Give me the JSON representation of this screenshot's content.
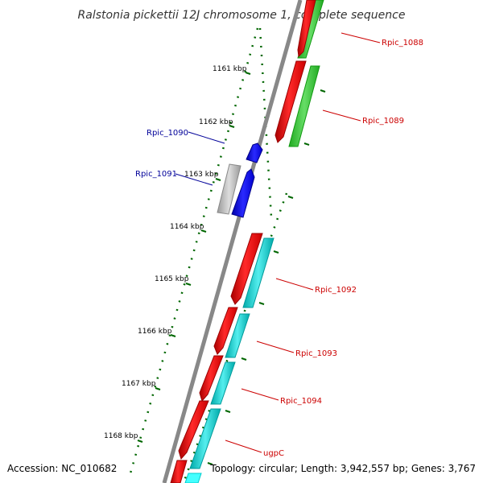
{
  "title": "Ralstonia pickettii 12J chromosome 1, complete sequence",
  "footer": {
    "accession": "Accession: NC_010682",
    "topology": "Topology: circular; Length: 3,942,557 bp; Genes: 3,767"
  },
  "ruler": [
    "1161 kbp",
    "1162 kbp",
    "1163 kbp",
    "1164 kbp",
    "1165 kbp",
    "1166 kbp",
    "1167 kbp",
    "1168 kbp"
  ],
  "genes": {
    "rpic_1088": "Rpic_1088",
    "rpic_1089": "Rpic_1089",
    "rpic_1090": "Rpic_1090",
    "rpic_1091": "Rpic_1091",
    "rpic_1092": "Rpic_1092",
    "rpic_1093": "Rpic_1093",
    "rpic_1094": "Rpic_1094",
    "ugpc": "ugpC"
  },
  "colors": {
    "forward_label": "#cc0000",
    "reverse_label": "#000099",
    "cds": "#ff0000",
    "reverse_cds": "#0000ff",
    "green_band": "#33cc33",
    "cyan_band": "#00cccc",
    "grey_band": "#bbbbbb",
    "backbone": "#888888",
    "tick": "#006600"
  }
}
